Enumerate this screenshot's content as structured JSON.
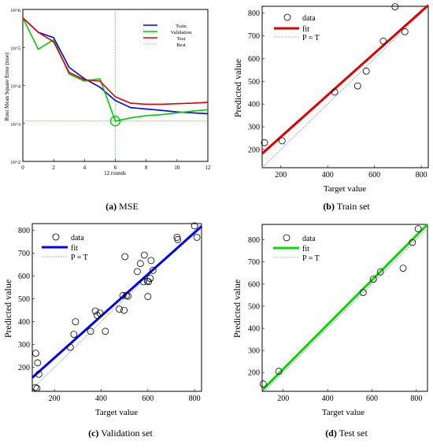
{
  "captions": {
    "a_letter": "(a)",
    "a_text": "MSE",
    "b_letter": "(b)",
    "b_text": "Train set",
    "c_letter": "(c)",
    "c_text": "Validation set",
    "d_letter": "(d)",
    "d_text": "Test set"
  },
  "colors": {
    "blue": "#0000ff",
    "green": "#00cc00",
    "red": "#e00000",
    "best": "#00cc00",
    "dotted": "#7a8fa8"
  },
  "chart_data": [
    {
      "id": "mse",
      "type": "line",
      "xlabel": "12 rounds",
      "ylabel": "Root Mean Square Error (mse)",
      "xlim": [
        0,
        12
      ],
      "ylim_log10": [
        2,
        6
      ],
      "yscale": "log",
      "xticks": [
        "0",
        "2",
        "4",
        "6",
        "8",
        "10",
        "12"
      ],
      "yticks": [
        "10^2",
        "10^3",
        "10^4",
        "10^5",
        "10^6"
      ],
      "legend": [
        "Train",
        "Validation",
        "Test",
        "Best"
      ],
      "best_epoch": 6,
      "best_value": 1150,
      "series": [
        {
          "name": "Train",
          "color": "#0000ff",
          "x": [
            0,
            1,
            2,
            3,
            4,
            5,
            6,
            7,
            8,
            9,
            10,
            11,
            12
          ],
          "y": [
            600000,
            250000,
            180000,
            30000,
            15000,
            9000,
            4000,
            2600,
            2400,
            2200,
            2000,
            1900,
            1800
          ]
        },
        {
          "name": "Validation",
          "color": "#00cc00",
          "x": [
            0,
            1,
            2,
            3,
            4,
            5,
            6,
            7,
            8,
            9,
            10,
            11,
            12
          ],
          "y": [
            600000,
            90000,
            160000,
            20000,
            13000,
            15000,
            1150,
            1400,
            1600,
            1700,
            1900,
            2100,
            2300
          ]
        },
        {
          "name": "Test",
          "color": "#e00000",
          "x": [
            0,
            1,
            2,
            3,
            4,
            5,
            6,
            7,
            8,
            9,
            10,
            11,
            12
          ],
          "y": [
            600000,
            250000,
            140000,
            22000,
            14000,
            13000,
            5000,
            3400,
            3200,
            3200,
            3300,
            3400,
            3600
          ]
        }
      ]
    },
    {
      "id": "train",
      "type": "scatter",
      "xlabel": "Target value",
      "ylabel": "Predicted value",
      "xlim": [
        120,
        830
      ],
      "ylim": [
        120,
        830
      ],
      "xticks": [
        200,
        400,
        600,
        800
      ],
      "yticks": [
        200,
        300,
        400,
        500,
        600,
        700,
        800
      ],
      "legend": [
        "data",
        "fit",
        "P = T"
      ],
      "fit_color": "#e00000",
      "fit": [
        [
          120,
          182
        ],
        [
          830,
          835
        ]
      ],
      "points": [
        [
          130,
          230
        ],
        [
          205,
          238
        ],
        [
          430,
          453
        ],
        [
          528,
          480
        ],
        [
          565,
          545
        ],
        [
          638,
          677
        ],
        [
          688,
          828
        ],
        [
          730,
          718
        ]
      ]
    },
    {
      "id": "validation",
      "type": "scatter",
      "xlabel": "Target value",
      "ylabel": "Predicted value",
      "xlim": [
        105,
        830
      ],
      "ylim": [
        95,
        830
      ],
      "xticks": [
        200,
        400,
        600,
        800
      ],
      "yticks": [
        200,
        300,
        400,
        500,
        600,
        700,
        800
      ],
      "legend": [
        "data",
        "fit",
        "P = T"
      ],
      "fit_color": "#0000ff",
      "fit": [
        [
          105,
          155
        ],
        [
          830,
          818
        ]
      ],
      "points": [
        [
          120,
          262
        ],
        [
          128,
          220
        ],
        [
          133,
          170
        ],
        [
          118,
          112
        ],
        [
          125,
          108
        ],
        [
          268,
          288
        ],
        [
          283,
          345
        ],
        [
          290,
          400
        ],
        [
          355,
          358
        ],
        [
          375,
          447
        ],
        [
          383,
          428
        ],
        [
          395,
          438
        ],
        [
          418,
          358
        ],
        [
          478,
          455
        ],
        [
          493,
          515
        ],
        [
          498,
          450
        ],
        [
          502,
          685
        ],
        [
          508,
          515
        ],
        [
          515,
          512
        ],
        [
          555,
          620
        ],
        [
          568,
          655
        ],
        [
          582,
          575
        ],
        [
          585,
          692
        ],
        [
          598,
          578
        ],
        [
          600,
          510
        ],
        [
          603,
          575
        ],
        [
          610,
          590
        ],
        [
          614,
          668
        ],
        [
          622,
          625
        ],
        [
          725,
          770
        ],
        [
          728,
          760
        ],
        [
          800,
          820
        ],
        [
          810,
          770
        ]
      ]
    },
    {
      "id": "test",
      "type": "scatter",
      "xlabel": "Target value",
      "ylabel": "Predicted value",
      "xlim": [
        105,
        850
      ],
      "ylim": [
        115,
        870
      ],
      "xticks": [
        200,
        400,
        600,
        800
      ],
      "yticks": [
        200,
        300,
        400,
        500,
        600,
        700,
        800
      ],
      "legend": [
        "data",
        "fit",
        "P = T"
      ],
      "fit_color": "#00dd00",
      "fit": [
        [
          105,
          120
        ],
        [
          850,
          870
        ]
      ],
      "points": [
        [
          110,
          148
        ],
        [
          180,
          205
        ],
        [
          560,
          562
        ],
        [
          606,
          622
        ],
        [
          638,
          655
        ],
        [
          740,
          672
        ],
        [
          782,
          788
        ],
        [
          808,
          850
        ]
      ]
    }
  ]
}
